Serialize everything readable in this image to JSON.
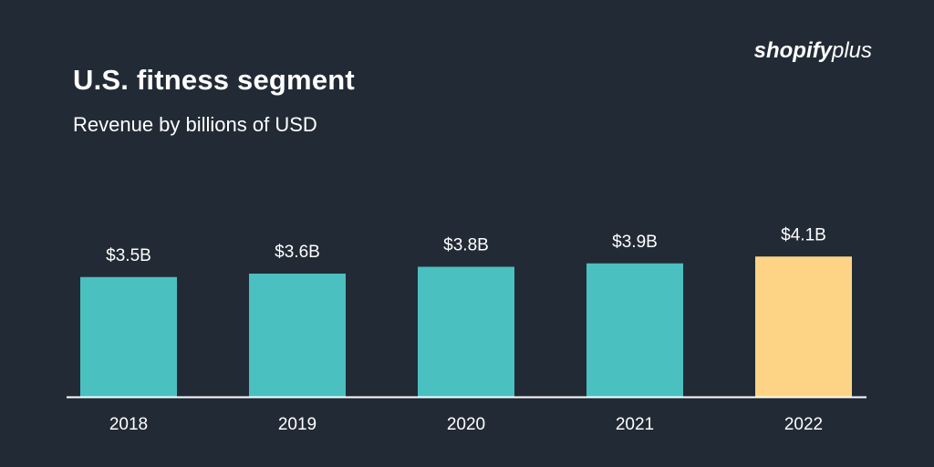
{
  "header": {
    "title": "U.S. fitness segment",
    "subtitle": "Revenue by billions of USD"
  },
  "brand": {
    "name_bold": "shopify",
    "name_light": "plus"
  },
  "colors": {
    "background": "#222b35",
    "bar": "#4ac0c0",
    "highlight_bar": "#fdd385",
    "baseline": "#ffffff",
    "text": "#ffffff"
  },
  "chart_data": {
    "type": "bar",
    "title": "U.S. fitness segment",
    "subtitle": "Revenue by billions of USD",
    "categories": [
      "2018",
      "2019",
      "2020",
      "2021",
      "2022"
    ],
    "values": [
      3.5,
      3.6,
      3.8,
      3.9,
      4.1
    ],
    "data_labels": [
      "$3.5B",
      "$3.6B",
      "$3.8B",
      "$3.9B",
      "$4.1B"
    ],
    "highlighted_category": "2022",
    "xlabel": "",
    "ylabel": "",
    "grid": false,
    "legend": "none"
  }
}
